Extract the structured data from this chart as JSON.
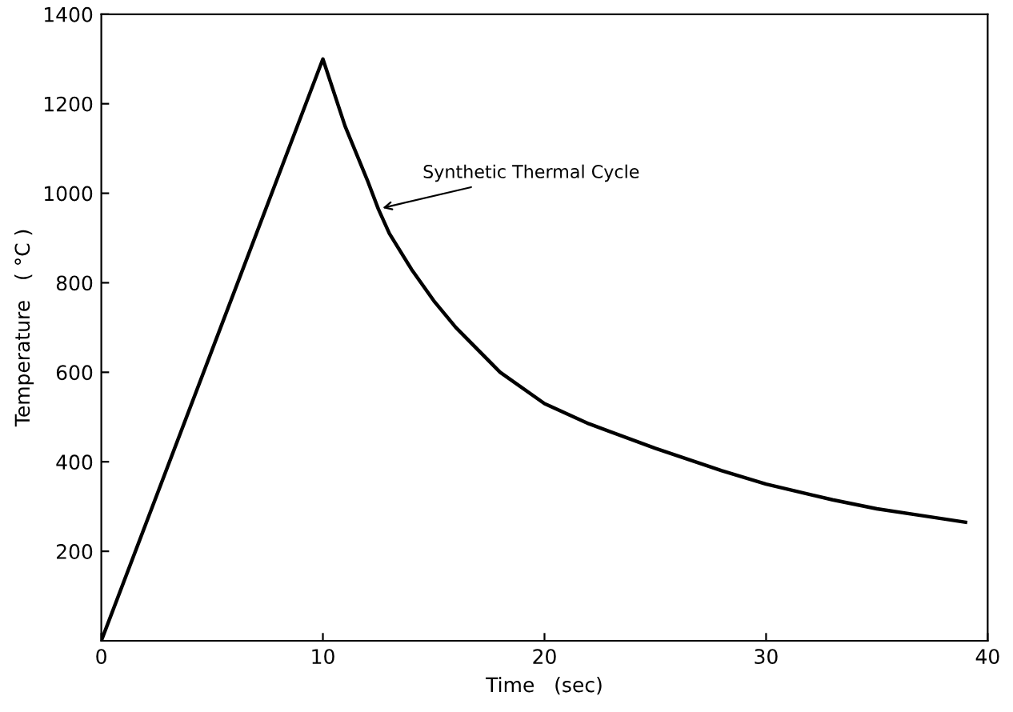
{
  "chart_data": {
    "type": "line",
    "xlabel": "Time   (sec)",
    "ylabel": "Temperature   ( °C )",
    "x": [
      0,
      5,
      10,
      11,
      12,
      12.5,
      13,
      14,
      15,
      16,
      17,
      18,
      20,
      22,
      25,
      28,
      30,
      33,
      35,
      37,
      39
    ],
    "series": [
      {
        "color": "#000000",
        "values": [
          0,
          650,
          1300,
          1150,
          1030,
          965,
          910,
          830,
          760,
          700,
          650,
          600,
          530,
          485,
          430,
          380,
          350,
          315,
          295,
          280,
          265
        ]
      }
    ],
    "xlim": [
      0,
      40
    ],
    "xticks": [
      0,
      10,
      20,
      30,
      40
    ],
    "ylim": [
      0,
      1400
    ],
    "yticks": [
      200,
      400,
      600,
      800,
      1000,
      1200,
      1400
    ],
    "annotations": [
      {
        "text": "Synthetic Thermal Cycle",
        "x": 12.5,
        "y": 965
      }
    ],
    "grid": false,
    "marker": "none",
    "line_style": "solid"
  }
}
